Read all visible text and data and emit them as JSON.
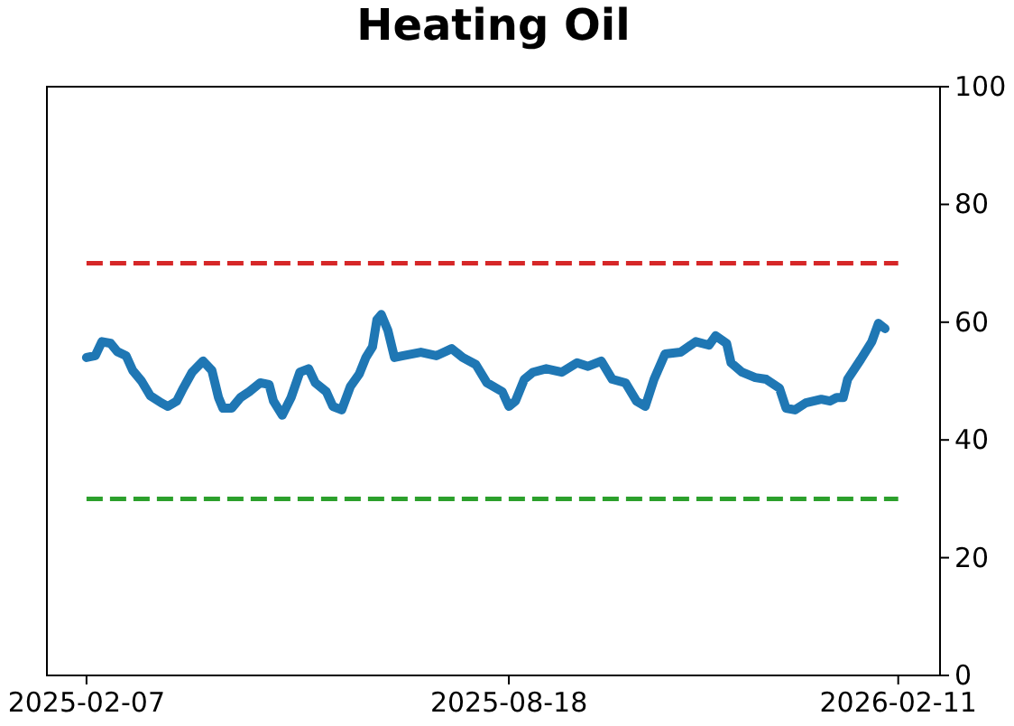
{
  "chart_data": {
    "type": "line",
    "title": "Heating Oil",
    "x": [
      "2025-02-07",
      "2025-02-11",
      "2025-02-14",
      "2025-02-18",
      "2025-02-21",
      "2025-02-25",
      "2025-02-28",
      "2025-03-04",
      "2025-03-08",
      "2025-03-13",
      "2025-03-16",
      "2025-03-20",
      "2025-03-23",
      "2025-03-27",
      "2025-04-01",
      "2025-04-05",
      "2025-04-08",
      "2025-04-10",
      "2025-04-14",
      "2025-04-18",
      "2025-04-22",
      "2025-04-27",
      "2025-05-01",
      "2025-05-03",
      "2025-05-07",
      "2025-05-11",
      "2025-05-15",
      "2025-05-19",
      "2025-05-22",
      "2025-05-27",
      "2025-05-30",
      "2025-06-03",
      "2025-06-07",
      "2025-06-11",
      "2025-06-14",
      "2025-06-17",
      "2025-06-19",
      "2025-06-21",
      "2025-06-24",
      "2025-06-27",
      "2025-07-01",
      "2025-07-09",
      "2025-07-16",
      "2025-07-23",
      "2025-07-28",
      "2025-08-03",
      "2025-08-08",
      "2025-08-15",
      "2025-08-18",
      "2025-08-21",
      "2025-08-25",
      "2025-08-29",
      "2025-09-04",
      "2025-09-11",
      "2025-09-18",
      "2025-09-23",
      "2025-09-29",
      "2025-10-04",
      "2025-10-10",
      "2025-10-15",
      "2025-10-19",
      "2025-10-23",
      "2025-10-28",
      "2025-11-04",
      "2025-11-11",
      "2025-11-17",
      "2025-11-20",
      "2025-11-25",
      "2025-11-27",
      "2025-12-02",
      "2025-12-08",
      "2025-12-13",
      "2025-12-19",
      "2025-12-22",
      "2025-12-26",
      "2025-12-31",
      "2026-01-07",
      "2026-01-11",
      "2026-01-14",
      "2026-01-17",
      "2026-01-19",
      "2026-01-25",
      "2026-01-30",
      "2026-02-02",
      "2026-02-05"
    ],
    "series": [
      {
        "color": "#1f77b4",
        "values": [
          54,
          54.3,
          56.7,
          56.4,
          55,
          54.3,
          51.8,
          50,
          47.5,
          46.3,
          45.7,
          46.6,
          48.8,
          51.5,
          53.4,
          51.8,
          47.2,
          45.4,
          45.4,
          47.2,
          48.2,
          49.7,
          49.4,
          46.6,
          44.2,
          47.2,
          51.5,
          52.1,
          49.7,
          48.2,
          45.7,
          45.1,
          49.1,
          51.2,
          54,
          55.8,
          60.4,
          61.3,
          58.6,
          54,
          54.3,
          54.9,
          54.3,
          55.5,
          54,
          52.8,
          49.7,
          48.2,
          45.7,
          46.6,
          50.3,
          51.5,
          52.1,
          51.5,
          53.1,
          52.5,
          53.4,
          50.3,
          49.7,
          46.6,
          45.7,
          50.3,
          54.6,
          54.9,
          56.7,
          56.1,
          57.7,
          56.4,
          53.1,
          51.5,
          50.6,
          50.3,
          48.8,
          45.4,
          45.1,
          46.3,
          46.9,
          46.6,
          47.2,
          47.2,
          50.3,
          53.7,
          56.7,
          59.8,
          58.9
        ]
      }
    ],
    "xlim": [
      "2025-01-20",
      "2026-03-02"
    ],
    "xticks": [
      "2025-02-07",
      "2025-08-18",
      "2026-02-11"
    ],
    "ylim": [
      0,
      100
    ],
    "yticks": [
      0,
      20,
      40,
      60,
      80,
      100
    ],
    "ref_lines": [
      {
        "axis": "y",
        "value": 70,
        "color": "#d62728",
        "line_style": "dashed"
      },
      {
        "axis": "y",
        "value": 30,
        "color": "#2ca02c",
        "line_style": "dashed"
      }
    ],
    "grid": false
  }
}
